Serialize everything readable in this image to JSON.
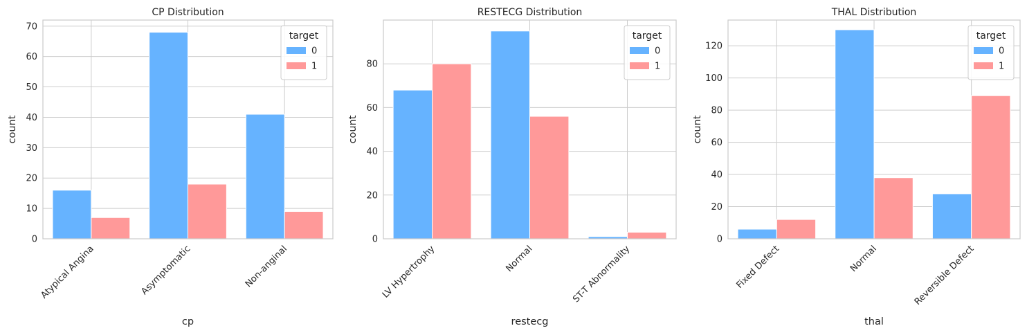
{
  "figure": {
    "background": "#ffffff"
  },
  "style": {
    "colors": [
      "#66b3ff",
      "#ff9999"
    ],
    "grid_color": "#cccccc",
    "spine_color": "#cccccc",
    "text_color": "#262626"
  },
  "chart_data": [
    {
      "type": "bar",
      "title": "CP Distribution",
      "xlabel": "cp",
      "ylabel": "count",
      "categories": [
        "Atypical Angina",
        "Asymptomatic",
        "Non-anginal"
      ],
      "series": [
        {
          "name": "0",
          "values": [
            16,
            68,
            41
          ]
        },
        {
          "name": "1",
          "values": [
            7,
            18,
            9
          ]
        }
      ],
      "ylim": [
        0,
        72
      ],
      "yticks": [
        0,
        10,
        20,
        30,
        40,
        50,
        60,
        70
      ],
      "grid": true,
      "legend": {
        "title": "target",
        "position": "top-right"
      }
    },
    {
      "type": "bar",
      "title": "RESTECG Distribution",
      "xlabel": "restecg",
      "ylabel": "count",
      "categories": [
        "LV Hypertrophy",
        "Normal",
        "ST-T Abnormality"
      ],
      "series": [
        {
          "name": "0",
          "values": [
            68,
            95,
            1
          ]
        },
        {
          "name": "1",
          "values": [
            80,
            56,
            3
          ]
        }
      ],
      "ylim": [
        0,
        100
      ],
      "yticks": [
        0,
        20,
        40,
        60,
        80
      ],
      "grid": true,
      "legend": {
        "title": "target",
        "position": "top-right"
      }
    },
    {
      "type": "bar",
      "title": "THAL Distribution",
      "xlabel": "thal",
      "ylabel": "count",
      "categories": [
        "Fixed Defect",
        "Normal",
        "Reversible Defect"
      ],
      "series": [
        {
          "name": "0",
          "values": [
            6,
            130,
            28
          ]
        },
        {
          "name": "1",
          "values": [
            12,
            38,
            89
          ]
        }
      ],
      "ylim": [
        0,
        136
      ],
      "yticks": [
        0,
        20,
        40,
        60,
        80,
        100,
        120
      ],
      "grid": true,
      "legend": {
        "title": "target",
        "position": "top-right"
      }
    }
  ]
}
